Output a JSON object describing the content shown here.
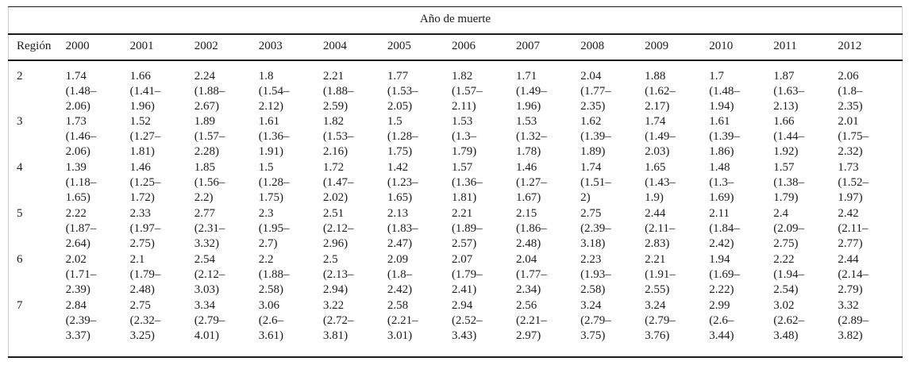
{
  "table": {
    "spanner_label": "Año de muerte",
    "region_header": "Región",
    "years": [
      "2000",
      "2001",
      "2002",
      "2003",
      "2004",
      "2005",
      "2006",
      "2007",
      "2008",
      "2009",
      "2010",
      "2011",
      "2012"
    ],
    "rows": [
      {
        "region": "2",
        "cells": [
          [
            "1.74",
            "(1.48–",
            "2.06)"
          ],
          [
            "1.66",
            "(1.41–",
            "1.96)"
          ],
          [
            "2.24",
            "(1.88–",
            "2.67)"
          ],
          [
            "1.8",
            "(1.54–",
            "2.12)"
          ],
          [
            "2.21",
            "(1.88–",
            "2.59)"
          ],
          [
            "1.77",
            "(1.53–",
            "2.05)"
          ],
          [
            "1.82",
            "(1.57–",
            "2.11)"
          ],
          [
            "1.71",
            "(1.49–",
            "1.96)"
          ],
          [
            "2.04",
            "(1.77–",
            "2.35)"
          ],
          [
            "1.88",
            "(1.62–",
            "2.17)"
          ],
          [
            "1.7",
            "(1.48–",
            "1.94)"
          ],
          [
            "1.87",
            "(1.63–",
            "2.13)"
          ],
          [
            "2.06",
            "(1.8–",
            "2.35)"
          ]
        ]
      },
      {
        "region": "3",
        "cells": [
          [
            "1.73",
            "(1.46–",
            "2.06)"
          ],
          [
            "1.52",
            "(1.27–",
            "1.81)"
          ],
          [
            "1.89",
            "(1.57–",
            "2.28)"
          ],
          [
            "1.61",
            "(1.36–",
            "1.91)"
          ],
          [
            "1.82",
            "(1.53–",
            "2.16)"
          ],
          [
            "1.5",
            "(1.28–",
            "1.75)"
          ],
          [
            "1.53",
            "(1.3–",
            "1.79)"
          ],
          [
            "1.53",
            "(1.32–",
            "1.78)"
          ],
          [
            "1.62",
            "(1.39–",
            "1.89)"
          ],
          [
            "1.74",
            "(1.49–",
            "2.03)"
          ],
          [
            "1.61",
            "(1.39–",
            "1.86)"
          ],
          [
            "1.66",
            "(1.44–",
            "1.92)"
          ],
          [
            "2.01",
            "(1.75–",
            "2.32)"
          ]
        ]
      },
      {
        "region": "4",
        "cells": [
          [
            "1.39",
            "(1.18–",
            "1.65)"
          ],
          [
            "1.46",
            "(1.25–",
            "1.72)"
          ],
          [
            "1.85",
            "(1.56–",
            "2.2)"
          ],
          [
            "1.5",
            "(1.28–",
            "1.75)"
          ],
          [
            "1.72",
            "(1.47–",
            "2.02)"
          ],
          [
            "1.42",
            "(1.23–",
            "1.65)"
          ],
          [
            "1.57",
            "(1.36–",
            "1.81)"
          ],
          [
            "1.46",
            "(1.27–",
            "1.67)"
          ],
          [
            "1.74",
            "(1.51–",
            "2)"
          ],
          [
            "1.65",
            "(1.43–",
            "1.9)"
          ],
          [
            "1.48",
            "(1.3–",
            "1.69)"
          ],
          [
            "1.57",
            "(1.38–",
            "1.79)"
          ],
          [
            "1.73",
            "(1.52–",
            "1.97)"
          ]
        ]
      },
      {
        "region": "5",
        "cells": [
          [
            "2.22",
            "(1.87–",
            "2.64)"
          ],
          [
            "2.33",
            "(1.97–",
            "2.75)"
          ],
          [
            "2.77",
            "(2.31–",
            "3.32)"
          ],
          [
            "2.3",
            "(1.95–",
            "2.7)"
          ],
          [
            "2.51",
            "(2.12–",
            "2.96)"
          ],
          [
            "2.13",
            "(1.83–",
            "2.47)"
          ],
          [
            "2.21",
            "(1.89–",
            "2.57)"
          ],
          [
            "2.15",
            "(1.86–",
            "2.48)"
          ],
          [
            "2.75",
            "(2.39–",
            "3.18)"
          ],
          [
            "2.44",
            "(2.11–",
            "2.83)"
          ],
          [
            "2.11",
            "(1.84–",
            "2.42)"
          ],
          [
            "2.4",
            "(2.09–",
            "2.75)"
          ],
          [
            "2.42",
            "(2.11–",
            "2.77)"
          ]
        ]
      },
      {
        "region": "6",
        "cells": [
          [
            "2.02",
            "(1.71–",
            "2.39)"
          ],
          [
            "2.1",
            "(1.79–",
            "2.48)"
          ],
          [
            "2.54",
            "(2.12–",
            "3.03)"
          ],
          [
            "2.2",
            "(1.88–",
            "2.58)"
          ],
          [
            "2.5",
            "(2.13–",
            "2.94)"
          ],
          [
            "2.09",
            "(1.8–",
            "2.42)"
          ],
          [
            "2.07",
            "(1.79–",
            "2.41)"
          ],
          [
            "2.04",
            "(1.77–",
            "2.34)"
          ],
          [
            "2.23",
            "(1.93–",
            "2.58)"
          ],
          [
            "2.21",
            "(1.91–",
            "2.55)"
          ],
          [
            "1.94",
            "(1.69–",
            "2.22)"
          ],
          [
            "2.22",
            "(1.94–",
            "2.54)"
          ],
          [
            "2.44",
            "(2.14–",
            "2.79)"
          ]
        ]
      },
      {
        "region": "7",
        "cells": [
          [
            "2.84",
            "(2.39–",
            "3.37)"
          ],
          [
            "2.75",
            "(2.32–",
            "3.25)"
          ],
          [
            "3.34",
            "(2.79–",
            "4.01)"
          ],
          [
            "3.06",
            "(2.6–",
            "3.61)"
          ],
          [
            "3.22",
            "(2.72–",
            "3.81)"
          ],
          [
            "2.58",
            "(2.21–",
            "3.01)"
          ],
          [
            "2.94",
            "(2.52–",
            "3.43)"
          ],
          [
            "2.56",
            "(2.21–",
            "2.97)"
          ],
          [
            "3.24",
            "(2.79–",
            "3.75)"
          ],
          [
            "3.24",
            "(2.79–",
            "3.76)"
          ],
          [
            "2.99",
            "(2.6–",
            "3.44)"
          ],
          [
            "3.02",
            "(2.62–",
            "3.48)"
          ],
          [
            "3.32",
            "(2.89–",
            "3.82)"
          ]
        ]
      }
    ]
  },
  "colors": {
    "text": "#1b1b1b",
    "rule": "#1b1b1b",
    "background": "#ffffff"
  }
}
